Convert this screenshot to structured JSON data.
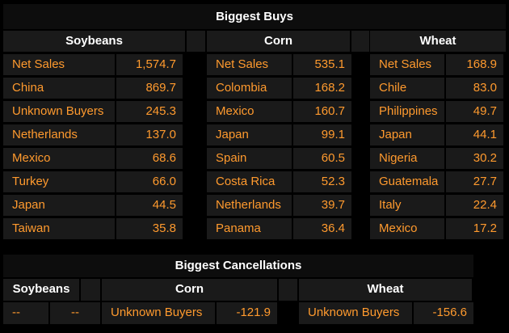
{
  "buys": {
    "title": "Biggest Buys",
    "groups": [
      {
        "name": "Soybeans",
        "rows": [
          {
            "label": "Net Sales",
            "value": "1,574.7"
          },
          {
            "label": "China",
            "value": "869.7"
          },
          {
            "label": "Unknown Buyers",
            "value": "245.3"
          },
          {
            "label": "Netherlands",
            "value": "137.0"
          },
          {
            "label": "Mexico",
            "value": "68.6"
          },
          {
            "label": "Turkey",
            "value": "66.0"
          },
          {
            "label": "Japan",
            "value": "44.5"
          },
          {
            "label": "Taiwan",
            "value": "35.8"
          }
        ]
      },
      {
        "name": "Corn",
        "rows": [
          {
            "label": "Net Sales",
            "value": "535.1"
          },
          {
            "label": "Colombia",
            "value": "168.2"
          },
          {
            "label": "Mexico",
            "value": "160.7"
          },
          {
            "label": "Japan",
            "value": "99.1"
          },
          {
            "label": "Spain",
            "value": "60.5"
          },
          {
            "label": "Costa Rica",
            "value": "52.3"
          },
          {
            "label": "Netherlands",
            "value": "39.7"
          },
          {
            "label": "Panama",
            "value": "36.4"
          }
        ]
      },
      {
        "name": "Wheat",
        "rows": [
          {
            "label": "Net Sales",
            "value": "168.9"
          },
          {
            "label": "Chile",
            "value": "83.0"
          },
          {
            "label": "Philippines",
            "value": "49.7"
          },
          {
            "label": "Japan",
            "value": "44.1"
          },
          {
            "label": "Nigeria",
            "value": "30.2"
          },
          {
            "label": "Guatemala",
            "value": "27.7"
          },
          {
            "label": "Italy",
            "value": "22.4"
          },
          {
            "label": "Mexico",
            "value": "17.2"
          }
        ]
      }
    ]
  },
  "cancellations": {
    "title": "Biggest Cancellations",
    "groups": [
      {
        "name": "Soybeans",
        "label": "--",
        "value": "--"
      },
      {
        "name": "Corn",
        "label": "Unknown Buyers",
        "value": "-121.9"
      },
      {
        "name": "Wheat",
        "label": "Unknown Buyers",
        "value": "-156.6"
      }
    ]
  },
  "colors": {
    "accent": "#ff9a2e",
    "cell_bg": "#1a1a1a",
    "title_bg": "#0d0d0d",
    "header_text": "#ffffff"
  }
}
